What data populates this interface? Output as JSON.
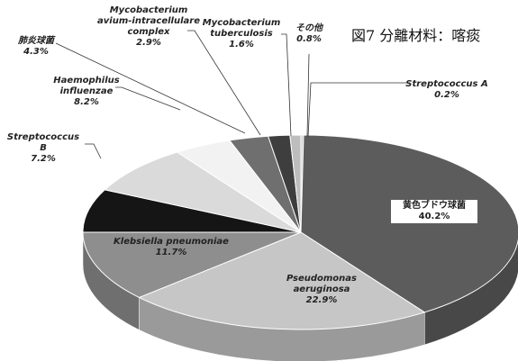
{
  "chart_data": {
    "type": "pie",
    "title": "図7 分離材料：喀痰",
    "categories": [
      "Streptococcus A",
      "黄色ブドウ球菌",
      "Pseudomonas aeruginosa",
      "Klebsiella pneumoniae",
      "Streptococcus B",
      "Haemophilus influenzae",
      "肺炎球菌",
      "Mycobacterium avium-intracellulare complex",
      "Mycobacterium tuberculosis",
      "その他"
    ],
    "values": [
      0.2,
      40.2,
      22.9,
      11.7,
      7.2,
      8.2,
      4.3,
      2.9,
      1.6,
      0.8
    ],
    "value_labels": [
      "0.2%",
      "40.2%",
      "22.9%",
      "11.7%",
      "7.2%",
      "8.2%",
      "4.3%",
      "2.9%",
      "1.6%",
      "0.8%"
    ],
    "colors": [
      "#d0d0d0",
      "#5c5c5c",
      "#c6c6c6",
      "#8e8e8e",
      "#151515",
      "#dadada",
      "#f2f2f2",
      "#6f6f6f",
      "#3e3e3e",
      "#bdbdbd"
    ]
  }
}
